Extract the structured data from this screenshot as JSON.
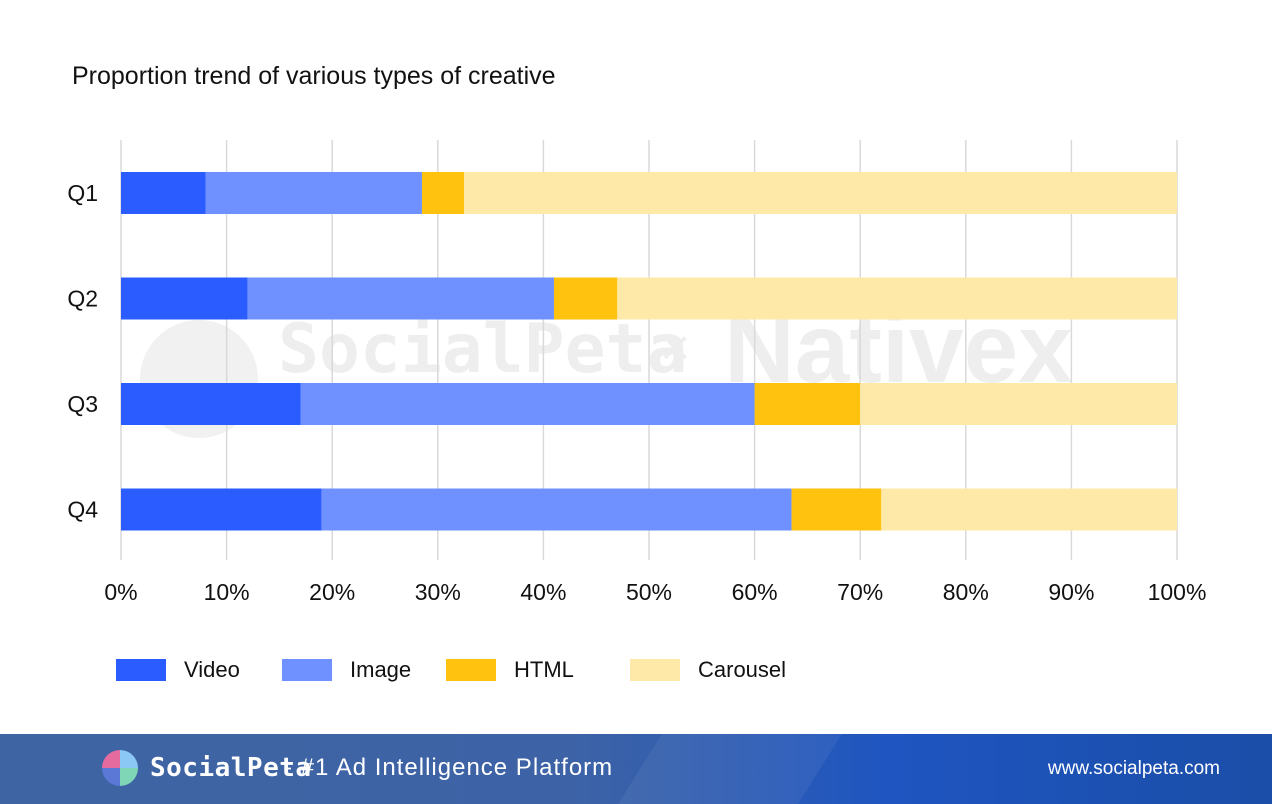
{
  "page": {
    "title": "Proportion trend of various types of creative",
    "watermark_left": "SocialPeta",
    "watermark_sep": "×",
    "watermark_right": "Nativex"
  },
  "colors": {
    "video": "#2a5cff",
    "image": "#6e91ff",
    "html": "#ffc20e",
    "carousel": "#ffe9a8",
    "grid": "#d9d9d9"
  },
  "chart_data": {
    "type": "bar",
    "orientation": "horizontal",
    "stacked": true,
    "title": "Proportion trend of various types of creative",
    "categories": [
      "Q1",
      "Q2",
      "Q3",
      "Q4"
    ],
    "series": [
      {
        "name": "Video",
        "values": [
          8,
          12,
          17,
          19
        ]
      },
      {
        "name": "Image",
        "values": [
          20.5,
          29,
          43,
          44.5
        ]
      },
      {
        "name": "HTML",
        "values": [
          4,
          6,
          10,
          8.5
        ]
      },
      {
        "name": "Carousel",
        "values": [
          67.5,
          53,
          30,
          28
        ]
      }
    ],
    "xlim": [
      0,
      100
    ],
    "xticks": [
      "0%",
      "10%",
      "20%",
      "30%",
      "40%",
      "50%",
      "60%",
      "70%",
      "80%",
      "90%",
      "100%"
    ],
    "grid": true,
    "legend_position": "bottom-left"
  },
  "footer": {
    "brand": "SocialPeta",
    "tagline": "- #1 Ad Intelligence Platform",
    "url": "www.socialpeta.com"
  }
}
